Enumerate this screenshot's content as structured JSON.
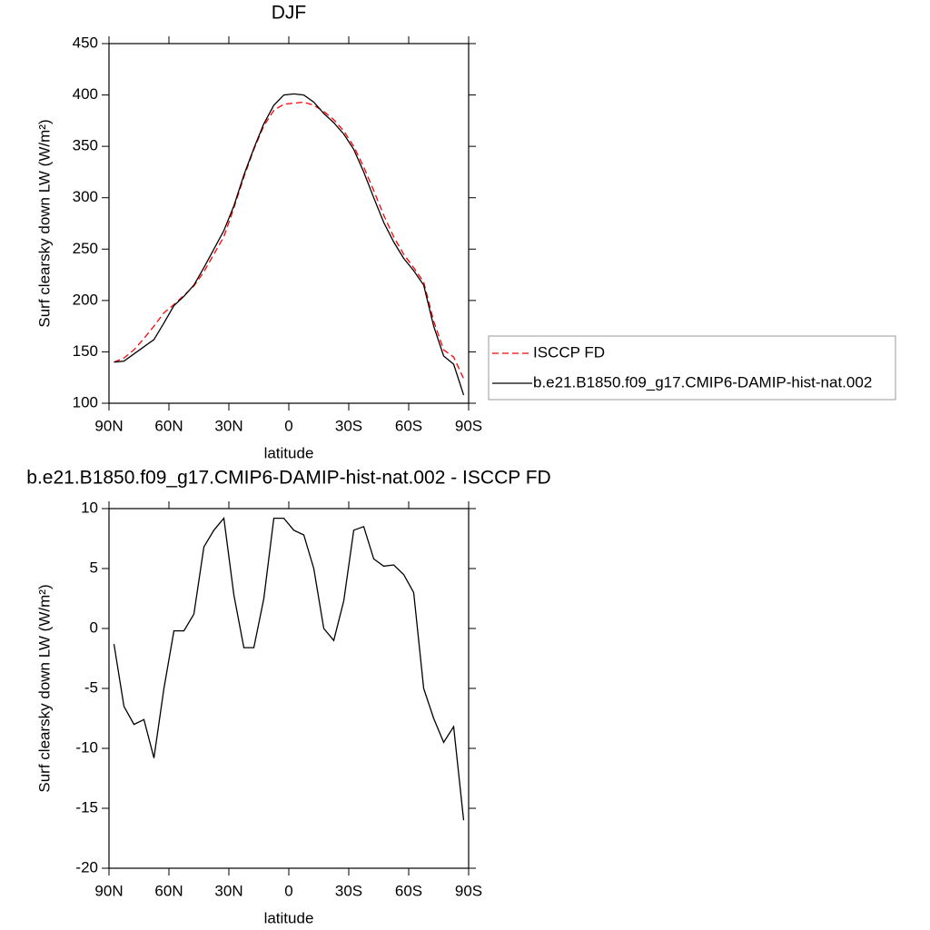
{
  "chart_data": [
    {
      "type": "line",
      "title": "DJF",
      "xlabel": "latitude",
      "ylabel": "Surf clearsky down LW (W/m²)",
      "x": [
        87.5,
        82.5,
        77.5,
        72.5,
        67.5,
        62.5,
        57.5,
        52.5,
        47.5,
        42.5,
        37.5,
        32.5,
        27.5,
        22.5,
        17.5,
        12.5,
        7.5,
        2.5,
        -2.5,
        -7.5,
        -12.5,
        -17.5,
        -22.5,
        -27.5,
        -32.5,
        -37.5,
        -42.5,
        -47.5,
        -52.5,
        -57.5,
        -62.5,
        -67.5,
        -72.5,
        -77.5,
        -82.5,
        -87.5
      ],
      "series": [
        {
          "name": "ISCCP FD",
          "color": "#ff0000",
          "dash": true,
          "values": [
            140,
            144,
            152,
            163,
            175,
            188,
            196,
            205,
            214,
            228,
            245,
            262,
            290,
            320,
            347,
            370,
            385,
            391,
            392,
            393,
            390,
            384,
            376,
            365,
            350,
            330,
            307,
            283,
            262,
            245,
            232,
            218,
            180,
            152,
            145,
            124
          ]
        },
        {
          "name": "b.e21.B1850.f09_g17.CMIP6-DAMIP-hist-nat.002",
          "color": "#000000",
          "dash": false,
          "values": [
            140,
            141,
            148,
            155,
            162,
            178,
            195,
            204,
            215,
            232,
            250,
            268,
            292,
            322,
            348,
            372,
            390,
            400,
            401,
            400,
            393,
            382,
            373,
            362,
            347,
            325,
            300,
            276,
            257,
            241,
            229,
            215,
            175,
            146,
            138,
            108
          ]
        }
      ],
      "xlim": [
        90,
        -90
      ],
      "xticks": [
        {
          "value": 90,
          "label": "90N"
        },
        {
          "value": 60,
          "label": "60N"
        },
        {
          "value": 30,
          "label": "30N"
        },
        0,
        {
          "value": -30,
          "label": "30S"
        },
        {
          "value": -60,
          "label": "60S"
        },
        {
          "value": -90,
          "label": "90S"
        }
      ],
      "ylim": [
        100,
        450
      ],
      "yticks": [
        100,
        150,
        200,
        250,
        300,
        350,
        400,
        450
      ],
      "legend": "right"
    },
    {
      "type": "line",
      "title": "b.e21.B1850.f09_g17.CMIP6-DAMIP-hist-nat.002 - ISCCP FD",
      "xlabel": "latitude",
      "ylabel": "Surf clearsky down LW (W/m²)",
      "x": [
        87.5,
        82.5,
        77.5,
        72.5,
        67.5,
        62.5,
        57.5,
        52.5,
        47.5,
        42.5,
        37.5,
        32.5,
        27.5,
        22.5,
        17.5,
        12.5,
        7.5,
        2.5,
        -2.5,
        -7.5,
        -12.5,
        -17.5,
        -22.5,
        -27.5,
        -32.5,
        -37.5,
        -42.5,
        -47.5,
        -52.5,
        -57.5,
        -62.5,
        -67.5,
        -72.5,
        -77.5,
        -82.5,
        -87.5
      ],
      "series": [
        {
          "color": "#000000",
          "dash": false,
          "values": [
            -1.3,
            -6.5,
            -8,
            -7.6,
            -10.8,
            -5,
            -0.2,
            -0.2,
            1.2,
            6.8,
            8.2,
            9.2,
            2.8,
            -1.6,
            -1.6,
            2.5,
            9.2,
            9.2,
            8.2,
            7.8,
            5,
            0,
            -1,
            2.3,
            8.2,
            8.5,
            5.8,
            5.2,
            5.3,
            4.5,
            3,
            -5,
            -7.5,
            -9.5,
            -8.2,
            -16
          ]
        }
      ],
      "xlim": [
        90,
        -90
      ],
      "xticks": [
        {
          "value": 90,
          "label": "90N"
        },
        {
          "value": 60,
          "label": "60N"
        },
        {
          "value": 30,
          "label": "30N"
        },
        0,
        {
          "value": -30,
          "label": "30S"
        },
        {
          "value": -60,
          "label": "60S"
        },
        {
          "value": -90,
          "label": "90S"
        }
      ],
      "ylim": [
        -20,
        10
      ],
      "yticks": [
        -20,
        -15,
        -10,
        -5,
        0,
        5,
        10
      ]
    }
  ]
}
